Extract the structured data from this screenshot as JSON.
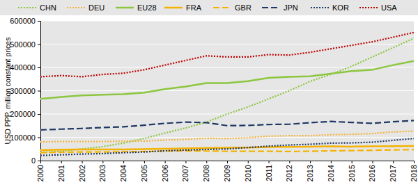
{
  "chart_data": {
    "type": "line",
    "y_label": "USD PPP, million constant prices",
    "categories": [
      "2000",
      "2001",
      "2002",
      "2003",
      "2004",
      "2005",
      "2006",
      "2007",
      "2008",
      "2009",
      "2010",
      "2011",
      "2012",
      "2013",
      "2014",
      "2015",
      "2016",
      "2017",
      "2018"
    ],
    "ylim": [
      0,
      600000
    ],
    "yticks": [
      0,
      100000,
      200000,
      300000,
      400000,
      500000,
      600000
    ],
    "grid": true,
    "legend": "top",
    "series": [
      {
        "name": "CHN",
        "color": "#8cc63f",
        "line_style": "dotted",
        "values": [
          35000,
          40000,
          50000,
          60000,
          75000,
          95000,
          118000,
          140000,
          165000,
          200000,
          230000,
          265000,
          300000,
          340000,
          370000,
          405000,
          445000,
          485000,
          525000
        ]
      },
      {
        "name": "DEU",
        "color": "#f5b335",
        "line_style": "dotted",
        "values": [
          80000,
          82000,
          82000,
          82000,
          83000,
          84000,
          88000,
          91000,
          96000,
          95000,
          98000,
          105000,
          107000,
          107000,
          111000,
          113000,
          116000,
          123000,
          127000
        ]
      },
      {
        "name": "EU28",
        "color": "#8cc63f",
        "line_style": "solid",
        "values": [
          265000,
          273000,
          280000,
          283000,
          285000,
          292000,
          307000,
          318000,
          333000,
          333000,
          341000,
          355000,
          360000,
          362000,
          373000,
          384000,
          390000,
          410000,
          428000
        ]
      },
      {
        "name": "FRA",
        "color": "#f5b200",
        "line_style": "solid",
        "values": [
          45000,
          47000,
          48000,
          48000,
          48000,
          49000,
          51000,
          52000,
          54000,
          55000,
          56000,
          58000,
          59000,
          60000,
          61000,
          60000,
          61000,
          62000,
          63000
        ]
      },
      {
        "name": "GBR",
        "color": "#f5b200",
        "line_style": "dashed",
        "values": [
          34000,
          36000,
          37000,
          37000,
          38000,
          39000,
          41000,
          42000,
          41000,
          40000,
          40000,
          40000,
          39000,
          40000,
          42000,
          43000,
          44000,
          46000,
          47000
        ]
      },
      {
        "name": "JPN",
        "color": "#1f3864",
        "line_style": "dashed",
        "values": [
          132000,
          135000,
          138000,
          142000,
          145000,
          152000,
          160000,
          165000,
          163000,
          150000,
          151000,
          155000,
          156000,
          163000,
          168000,
          164000,
          160000,
          167000,
          172000
        ]
      },
      {
        "name": "KOR",
        "color": "#1f3864",
        "line_style": "dotted",
        "values": [
          22000,
          25000,
          28000,
          30000,
          34000,
          37000,
          42000,
          45000,
          48000,
          50000,
          56000,
          62000,
          67000,
          70000,
          75000,
          76000,
          79000,
          87000,
          95000
        ]
      },
      {
        "name": "USA",
        "color": "#c00000",
        "line_style": "dotted",
        "values": [
          360000,
          365000,
          360000,
          370000,
          375000,
          390000,
          410000,
          430000,
          450000,
          445000,
          445000,
          455000,
          453000,
          465000,
          480000,
          495000,
          510000,
          530000,
          550000
        ]
      }
    ]
  }
}
